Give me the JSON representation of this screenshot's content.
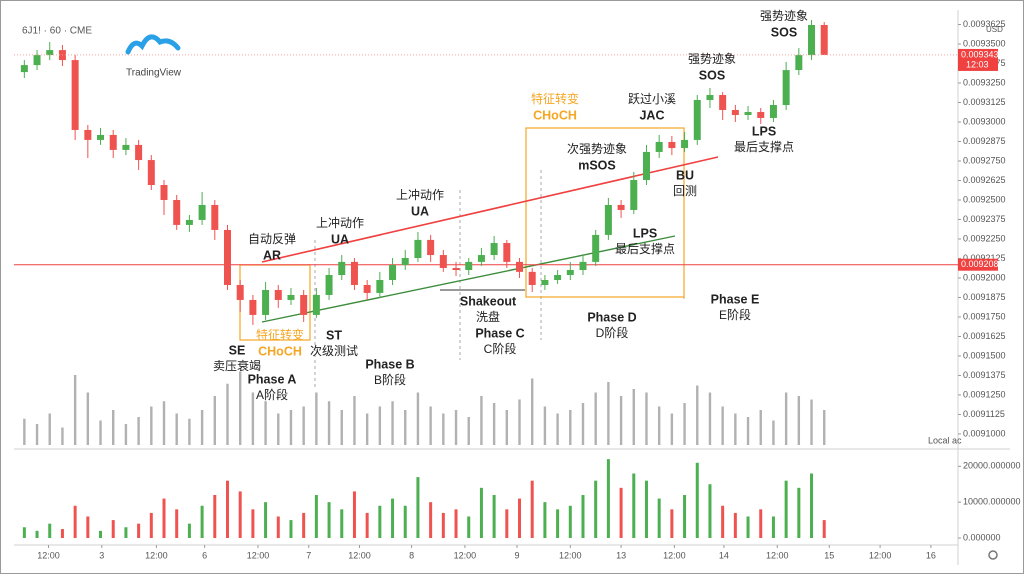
{
  "chart_data": [
    {
      "type": "candlestick",
      "title": "6J1! · 60 · CME",
      "logo": "TradingView",
      "currency": "USD",
      "up_color": "#4caf50",
      "down_color": "#ef5350",
      "x": [
        0,
        1,
        2,
        3,
        4,
        5,
        6,
        7,
        8,
        9,
        10,
        11,
        12,
        13,
        14,
        15,
        16,
        17,
        18,
        19,
        20,
        21,
        22,
        23,
        24,
        25,
        26,
        27,
        28,
        29,
        30,
        31,
        32,
        33,
        34,
        35,
        36,
        37,
        38,
        39,
        40,
        41,
        42,
        43,
        44,
        45,
        46,
        47,
        48,
        49,
        50,
        51,
        52,
        53,
        54,
        55,
        56,
        57,
        58,
        59,
        60,
        61,
        62,
        63
      ],
      "open": [
        0.009332,
        0.0093365,
        0.0093429,
        0.0093461,
        0.0093397,
        0.0092949,
        0.0092885,
        0.0092917,
        0.0092821,
        0.0092853,
        0.0092756,
        0.0092596,
        0.00925,
        0.009234,
        0.0092372,
        0.0092468,
        0.0092308,
        0.0091955,
        0.0091859,
        0.0091763,
        0.0091923,
        0.0091859,
        0.0091891,
        0.0091763,
        0.0091891,
        0.0092019,
        0.0092103,
        0.0091955,
        0.0091904,
        0.0091987,
        0.0092083,
        0.0092128,
        0.0092244,
        0.0092147,
        0.0092064,
        0.0092051,
        0.0092103,
        0.0092147,
        0.0092224,
        0.0092103,
        0.0092039,
        0.0091955,
        0.0091987,
        0.0092019,
        0.0092051,
        0.0092103,
        0.0092276,
        0.0092468,
        0.0092436,
        0.0092628,
        0.0092808,
        0.0092872,
        0.0092833,
        0.0092885,
        0.0093141,
        0.0093173,
        0.0093077,
        0.0093045,
        0.0093064,
        0.0093026,
        0.0093109,
        0.0093333,
        0.0093429,
        0.0093622
      ],
      "high": [
        0.0093397,
        0.0093461,
        0.0093513,
        0.0093494,
        0.0093429,
        0.0092981,
        0.0092962,
        0.0092949,
        0.0092897,
        0.0092885,
        0.0092788,
        0.0092628,
        0.0092532,
        0.0092404,
        0.0092551,
        0.00925,
        0.009234,
        0.0091987,
        0.0091891,
        0.0091974,
        0.0091955,
        0.0091936,
        0.0091923,
        0.0091936,
        0.0092064,
        0.0092147,
        0.0092128,
        0.0091987,
        0.0092039,
        0.0092128,
        0.009218,
        0.0092295,
        0.0092276,
        0.009218,
        0.0092103,
        0.0092128,
        0.0092192,
        0.0092269,
        0.0092244,
        0.0092128,
        0.0092064,
        0.0092019,
        0.0092051,
        0.0092103,
        0.0092141,
        0.0092308,
        0.0092513,
        0.00925,
        0.009268,
        0.0092853,
        0.0092917,
        0.009291,
        0.0092936,
        0.0093173,
        0.0093218,
        0.0093192,
        0.0093109,
        0.0093103,
        0.009309,
        0.0093141,
        0.0093385,
        0.0093474,
        0.0093654,
        0.0093641
      ],
      "low": [
        0.0093282,
        0.0093333,
        0.0093397,
        0.0093359,
        0.0092885,
        0.0092769,
        0.0092853,
        0.0092769,
        0.0092788,
        0.0092692,
        0.0092564,
        0.0092404,
        0.0092308,
        0.0092295,
        0.009234,
        0.0092244,
        0.0091923,
        0.0091782,
        0.0091699,
        0.0091731,
        0.0091808,
        0.0091827,
        0.0091718,
        0.0091744,
        0.0091859,
        0.0091987,
        0.0091923,
        0.0091859,
        0.0091872,
        0.0091955,
        0.0092051,
        0.0092103,
        0.0092103,
        0.0092039,
        0.0092013,
        0.0092019,
        0.0092077,
        0.0092115,
        0.0092064,
        0.0092,
        0.009191,
        0.0091923,
        0.0091962,
        0.0091987,
        0.0092019,
        0.0092077,
        0.0092244,
        0.0092385,
        0.009241,
        0.0092596,
        0.0092769,
        0.0092788,
        0.0092808,
        0.0092853,
        0.009309,
        0.0093013,
        0.0093,
        0.0093013,
        0.0092987,
        0.0093,
        0.0093077,
        0.0093301,
        0.0093397,
        0.0093449
      ],
      "close": [
        0.0093365,
        0.0093429,
        0.0093461,
        0.0093397,
        0.0092949,
        0.0092885,
        0.0092917,
        0.0092821,
        0.0092853,
        0.0092756,
        0.0092596,
        0.00925,
        0.009234,
        0.0092372,
        0.0092468,
        0.0092308,
        0.0091955,
        0.0091859,
        0.0091763,
        0.0091923,
        0.0091859,
        0.0091891,
        0.0091763,
        0.0091891,
        0.0092019,
        0.0092103,
        0.0091955,
        0.0091904,
        0.0091987,
        0.0092083,
        0.0092128,
        0.0092244,
        0.0092147,
        0.0092064,
        0.0092051,
        0.0092103,
        0.0092147,
        0.0092224,
        0.0092103,
        0.0092039,
        0.0091955,
        0.0091987,
        0.0092019,
        0.0092051,
        0.0092103,
        0.0092276,
        0.0092468,
        0.0092436,
        0.0092628,
        0.0092808,
        0.0092872,
        0.0092833,
        0.0092885,
        0.0093141,
        0.0093173,
        0.0093077,
        0.0093045,
        0.0093064,
        0.0093026,
        0.0093109,
        0.0093333,
        0.0093429,
        0.0093622,
        0.009343
      ],
      "xlim": [
        -0.5,
        73.3
      ],
      "xticks": [
        {
          "value": 1.9,
          "label": "12:00"
        },
        {
          "value": 6.1,
          "label": "3"
        },
        {
          "value": 10.4,
          "label": "12:00"
        },
        {
          "value": 14.2,
          "label": "6"
        },
        {
          "value": 18.4,
          "label": "12:00"
        },
        {
          "value": 22.4,
          "label": "7"
        },
        {
          "value": 26.4,
          "label": "12:00"
        },
        {
          "value": 30.5,
          "label": "8"
        },
        {
          "value": 34.7,
          "label": "12:00"
        },
        {
          "value": 38.8,
          "label": "9"
        },
        {
          "value": 43,
          "label": "12:00"
        },
        {
          "value": 47,
          "label": "13"
        },
        {
          "value": 51.2,
          "label": "12:00"
        },
        {
          "value": 55.1,
          "label": "14"
        },
        {
          "value": 59.3,
          "label": "12:00"
        },
        {
          "value": 63.4,
          "label": "15"
        },
        {
          "value": 67.4,
          "label": "12:00"
        },
        {
          "value": 71.4,
          "label": "16"
        }
      ],
      "ylim": [
        0.0090929,
        0.0093654
      ],
      "yticks": [
        {
          "value": 0.0091,
          "label": "0.0091000"
        },
        {
          "value": 0.0091125,
          "label": "0.0091125"
        },
        {
          "value": 0.009125,
          "label": "0.0091250"
        },
        {
          "value": 0.0091375,
          "label": "0.0091375"
        },
        {
          "value": 0.00915,
          "label": "0.0091500"
        },
        {
          "value": 0.0091625,
          "label": "0.0091625"
        },
        {
          "value": 0.009175,
          "label": "0.0091750"
        },
        {
          "value": 0.0091875,
          "label": "0.0091875"
        },
        {
          "value": 0.0092,
          "label": "0.0092000"
        },
        {
          "value": 0.0092125,
          "label": "0.0092125"
        },
        {
          "value": 0.009225,
          "label": "0.0092250"
        },
        {
          "value": 0.0092375,
          "label": "0.0092375"
        },
        {
          "value": 0.00925,
          "label": "0.0092500"
        },
        {
          "value": 0.0092625,
          "label": "0.0092625"
        },
        {
          "value": 0.009275,
          "label": "0.0092750"
        },
        {
          "value": 0.0092875,
          "label": "0.0092875"
        },
        {
          "value": 0.0093,
          "label": "0.0093000"
        },
        {
          "value": 0.0093125,
          "label": "0.0093125"
        },
        {
          "value": 0.009325,
          "label": "0.0093250"
        },
        {
          "value": 0.0093375,
          "label": "0.0093375"
        },
        {
          "value": 0.00935,
          "label": "0.0093500"
        },
        {
          "value": 0.0093625,
          "label": "0.0093625"
        }
      ],
      "last_price": {
        "value": 0.009343,
        "label": "0.0093430"
      },
      "countdown": "12:03",
      "level_line": {
        "value": 0.0092085,
        "label": "0.0092085"
      },
      "annotations": [
        [
          "强势迹象",
          "SOS"
        ],
        [
          "强势迹象",
          "SOS"
        ],
        [
          "跃过小溪",
          "JAC"
        ],
        [
          "特征转变",
          "CHoCH"
        ],
        [
          "次强势迹象",
          "mSOS"
        ],
        [
          "LPS",
          "最后支撑点"
        ],
        [
          "BU",
          "回测"
        ],
        [
          "上冲动作",
          "UA"
        ],
        [
          "上冲动作",
          "UA"
        ],
        [
          "自动反弹",
          "AR"
        ],
        [
          "LPS",
          "最后支撑点"
        ],
        [
          "Shakeout",
          "洗盘"
        ],
        [
          "Phase C",
          "C阶段"
        ],
        [
          "Phase D",
          "D阶段"
        ],
        [
          "Phase E",
          "E阶段"
        ],
        [
          "特征转变",
          "CHoCH"
        ],
        [
          "SE",
          "卖压衰竭"
        ],
        [
          "ST",
          "次级测试"
        ],
        [
          "Phase A",
          "A阶段"
        ],
        [
          "Phase B",
          "B阶段"
        ]
      ]
    },
    {
      "type": "bar",
      "label": "Local ac",
      "color": "#9e9e9e",
      "ylim": [
        0,
        60000
      ],
      "values": [
        15000,
        12000,
        18000,
        10000,
        40000,
        30000,
        14000,
        20000,
        12000,
        16000,
        22000,
        25000,
        18000,
        15000,
        20000,
        28000,
        35000,
        42000,
        30000,
        25000,
        18000,
        20000,
        22000,
        30000,
        25000,
        20000,
        28000,
        18000,
        22000,
        25000,
        20000,
        30000,
        22000,
        18000,
        20000,
        16000,
        28000,
        24000,
        20000,
        26000,
        38000,
        22000,
        18000,
        20000,
        24000,
        30000,
        36000,
        28000,
        32000,
        30000,
        22000,
        18000,
        24000,
        34000,
        30000,
        22000,
        18000,
        16000,
        20000,
        14000,
        30000,
        28000,
        26000,
        20000
      ]
    },
    {
      "type": "bar",
      "ylim": [
        0,
        24000
      ],
      "yticks": [
        {
          "value": 20000,
          "label": "20000.000000"
        },
        {
          "value": 10000,
          "label": "10000.000000"
        },
        {
          "value": 0,
          "label": "0.000000"
        }
      ],
      "values": [
        3000,
        2000,
        4000,
        2500,
        9000,
        6000,
        2000,
        5000,
        3000,
        4000,
        7000,
        11000,
        8000,
        4000,
        9000,
        12000,
        16000,
        13000,
        8000,
        10000,
        6000,
        5000,
        7000,
        12000,
        10000,
        8000,
        13000,
        7000,
        9000,
        11000,
        9000,
        17000,
        10000,
        7000,
        8000,
        6000,
        14000,
        12000,
        8000,
        11000,
        16000,
        10000,
        8000,
        9000,
        12000,
        16000,
        22000,
        14000,
        18000,
        16000,
        11000,
        8000,
        12000,
        21000,
        15000,
        9000,
        7000,
        6000,
        8000,
        6000,
        16000,
        14000,
        18000,
        5000
      ]
    }
  ]
}
